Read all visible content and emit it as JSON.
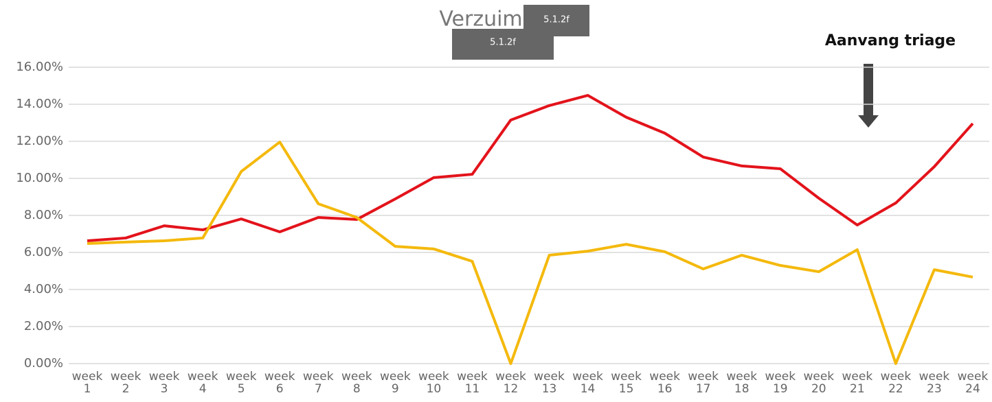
{
  "chart_data": {
    "type": "line",
    "title": "Verzuim",
    "annotations": [
      "Aanvang triage",
      "5.1.2f",
      "5.1.2f"
    ],
    "categories": [
      "week 1",
      "week 2",
      "week 3",
      "week 4",
      "week 5",
      "week 6",
      "week 7",
      "week 8",
      "week 9",
      "week 10",
      "week 11",
      "week 12",
      "week 13",
      "week 14",
      "week 15",
      "week 16",
      "week 17",
      "week 18",
      "week 19",
      "week 20",
      "week 21",
      "week 22",
      "week 23",
      "week 24"
    ],
    "series": [
      {
        "color": "#e3131b",
        "values": [
          6.63,
          6.78,
          7.44,
          7.22,
          7.81,
          7.11,
          7.89,
          7.78,
          8.89,
          10.04,
          10.22,
          13.15,
          13.93,
          14.48,
          13.3,
          12.44,
          11.15,
          10.67,
          10.52,
          8.93,
          7.48,
          8.67,
          10.63,
          12.96
        ]
      },
      {
        "color": "#f4b90d",
        "values": [
          6.48,
          6.56,
          6.63,
          6.78,
          10.37,
          11.96,
          8.63,
          7.89,
          6.33,
          6.19,
          5.52,
          0,
          5.85,
          6.07,
          6.44,
          6.04,
          5.11,
          5.85,
          5.3,
          4.96,
          6.15,
          0,
          5.07,
          4.67
        ]
      }
    ],
    "ylim": [
      0,
      16
    ],
    "yticks": [
      {
        "value": 0,
        "label": "0.00%"
      },
      {
        "value": 2,
        "label": "2.00%"
      },
      {
        "value": 4,
        "label": "4.00%"
      },
      {
        "value": 6,
        "label": "6.00%"
      },
      {
        "value": 8,
        "label": "8.00%"
      },
      {
        "value": 10,
        "label": "10.00%"
      },
      {
        "value": 12,
        "label": "12.00%"
      },
      {
        "value": 14,
        "label": "14.00%"
      },
      {
        "value": 16,
        "label": "16.00%"
      }
    ],
    "grid": true
  }
}
